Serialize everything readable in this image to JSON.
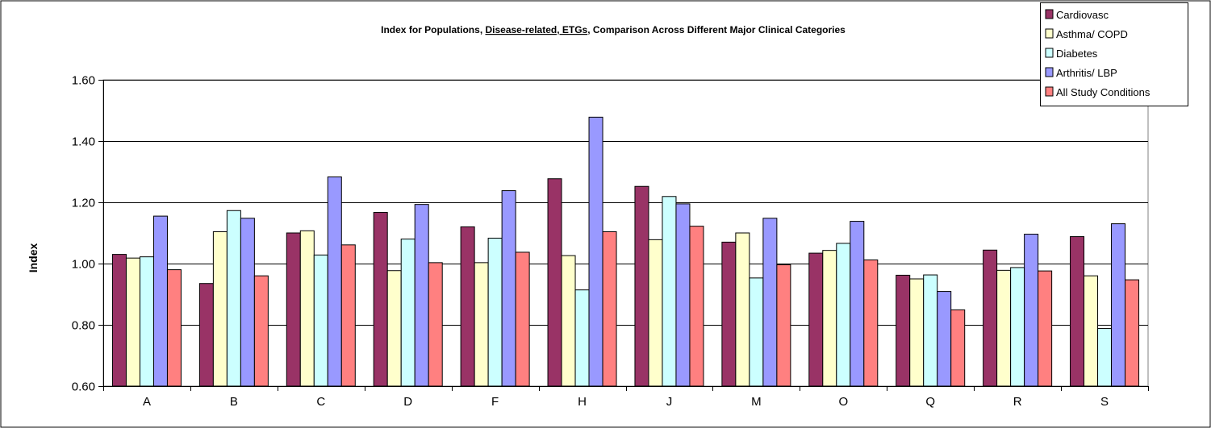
{
  "chart_data": {
    "type": "bar",
    "title_parts": [
      {
        "text": "Index for Populations, ",
        "underline": false
      },
      {
        "text": "Disease-related, ETGs",
        "underline": true
      },
      {
        "text": ", Comparison Across Different Major Clinical Categories",
        "underline": false
      }
    ],
    "xlabel": "",
    "ylabel": "Index",
    "ylim": [
      0.6,
      1.6
    ],
    "yticks": [
      0.6,
      0.8,
      1.0,
      1.2,
      1.4,
      1.6
    ],
    "ytick_labels": [
      "0.60",
      "0.80",
      "1.00",
      "1.20",
      "1.40",
      "1.60"
    ],
    "grid": true,
    "legend_position": "top-right",
    "categories": [
      "A",
      "B",
      "C",
      "D",
      "F",
      "H",
      "J",
      "M",
      "O",
      "Q",
      "R",
      "S"
    ],
    "series": [
      {
        "name": "Cardiovasc",
        "color": "#993366",
        "values": [
          1.03,
          0.935,
          1.1,
          1.167,
          1.12,
          1.277,
          1.252,
          1.07,
          1.034,
          0.962,
          1.044,
          1.088
        ]
      },
      {
        "name": "Asthma/ COPD",
        "color": "#FFFFCC",
        "values": [
          1.018,
          1.104,
          1.107,
          0.977,
          1.003,
          1.026,
          1.078,
          1.1,
          1.043,
          0.95,
          0.978,
          0.96
        ]
      },
      {
        "name": "Diabetes",
        "color": "#CCFFFF",
        "values": [
          1.022,
          1.173,
          1.028,
          1.08,
          1.083,
          0.914,
          1.219,
          0.953,
          1.066,
          0.963,
          0.987,
          0.788
        ]
      },
      {
        "name": "Arthritis/ LBP",
        "color": "#9999FF",
        "values": [
          1.155,
          1.148,
          1.283,
          1.193,
          1.238,
          1.478,
          1.195,
          1.148,
          1.138,
          0.909,
          1.096,
          1.13
        ]
      },
      {
        "name": "All Study Conditions",
        "color": "#FF8080",
        "values": [
          0.98,
          0.96,
          1.061,
          1.003,
          1.037,
          1.104,
          1.122,
          0.996,
          1.012,
          0.849,
          0.976,
          0.947
        ]
      }
    ]
  }
}
